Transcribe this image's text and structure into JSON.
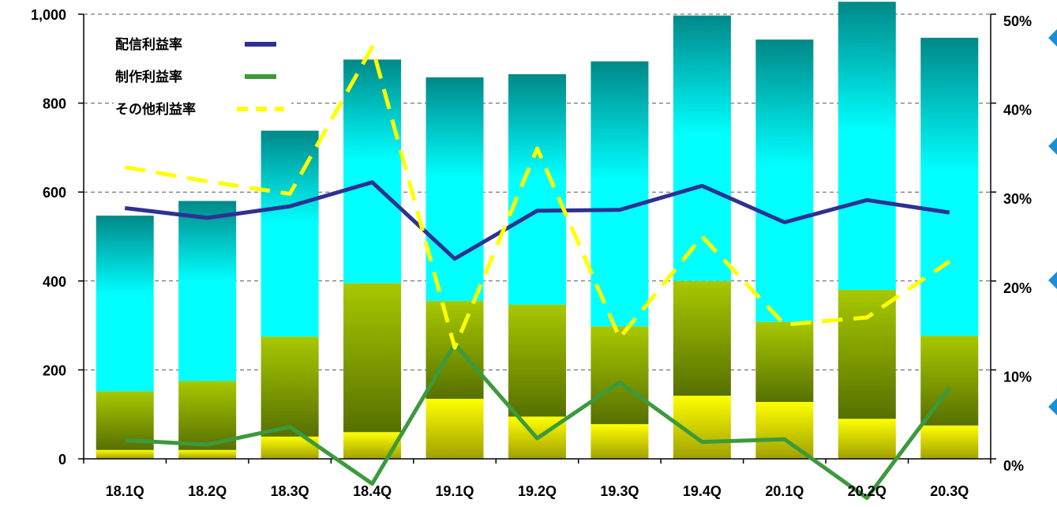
{
  "chart_data": {
    "type": "bar",
    "stacked": true,
    "categories": [
      "18.1Q",
      "18.2Q",
      "18.3Q",
      "18.4Q",
      "19.1Q",
      "19.2Q",
      "19.3Q",
      "19.4Q",
      "20.1Q",
      "20.2Q",
      "20.3Q"
    ],
    "bar_series": [
      {
        "values": [
          20,
          20,
          50,
          60,
          135,
          95,
          78,
          142,
          128,
          90,
          75
        ],
        "color_top": "#ffff00",
        "color_bottom": "#a0a000"
      },
      {
        "values": [
          132,
          155,
          225,
          335,
          220,
          252,
          220,
          258,
          180,
          290,
          202
        ],
        "color_top": "#a8c800",
        "color_bottom": "#567000"
      },
      {
        "values": [
          395,
          405,
          463,
          503,
          503,
          518,
          596,
          597,
          635,
          648,
          670
        ],
        "color_top": "#00ffff",
        "color_bottom": "#008888"
      }
    ],
    "line_series": [
      {
        "name": "配信利益率",
        "axis": "right",
        "color": "#2e3192",
        "style": "solid",
        "values": [
          28.2,
          27.1,
          28.4,
          31.1,
          22.5,
          27.9,
          28.0,
          30.7,
          26.6,
          29.1,
          27.7
        ]
      },
      {
        "name": "制作利益率",
        "axis": "right",
        "color": "#3c9a3c",
        "style": "solid",
        "values": [
          2.1,
          1.6,
          3.6,
          -2.8,
          12.9,
          2.3,
          8.6,
          1.9,
          2.2,
          -4.4,
          8.0
        ]
      },
      {
        "name": "その他利益率",
        "axis": "right",
        "color": "#ffff00",
        "style": "dashed",
        "values": [
          32.8,
          31.2,
          29.8,
          46.3,
          12.5,
          34.9,
          13.6,
          25.0,
          15.1,
          15.9,
          22.2
        ]
      }
    ],
    "y_left": {
      "min": 0,
      "max": 1000,
      "ticks": [
        0,
        200,
        400,
        600,
        800,
        1000
      ],
      "tick_labels": [
        "0",
        "200",
        "400",
        "600",
        "800",
        "1,000"
      ]
    },
    "y_right": {
      "min": 0,
      "max": 50,
      "ticks": [
        0,
        10,
        20,
        30,
        40,
        50
      ],
      "tick_labels": [
        "0%",
        "10%",
        "20%",
        "30%",
        "40%",
        "50%"
      ]
    },
    "grid": true,
    "grid_style": "dashed",
    "legend_position": "top-left"
  },
  "colors": {
    "background": "#ffffff",
    "gridline": "#555555",
    "axis": "#000000",
    "right_marker": "#1a8fd6"
  }
}
